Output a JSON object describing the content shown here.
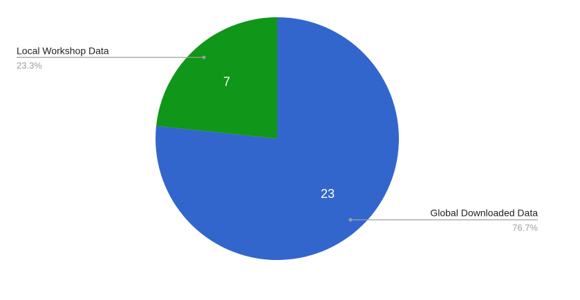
{
  "chart_data": {
    "type": "pie",
    "slices": [
      {
        "label": "Global Downloaded Data",
        "value": 23,
        "value_label": "23",
        "percent_label": "76.7%",
        "color": "#3366cc"
      },
      {
        "label": "Local Workshop Data",
        "value": 7,
        "value_label": "7",
        "percent_label": "23.3%",
        "color": "#109618"
      }
    ],
    "legend": "callout-labels",
    "start_angle": "top",
    "direction": "clockwise"
  }
}
